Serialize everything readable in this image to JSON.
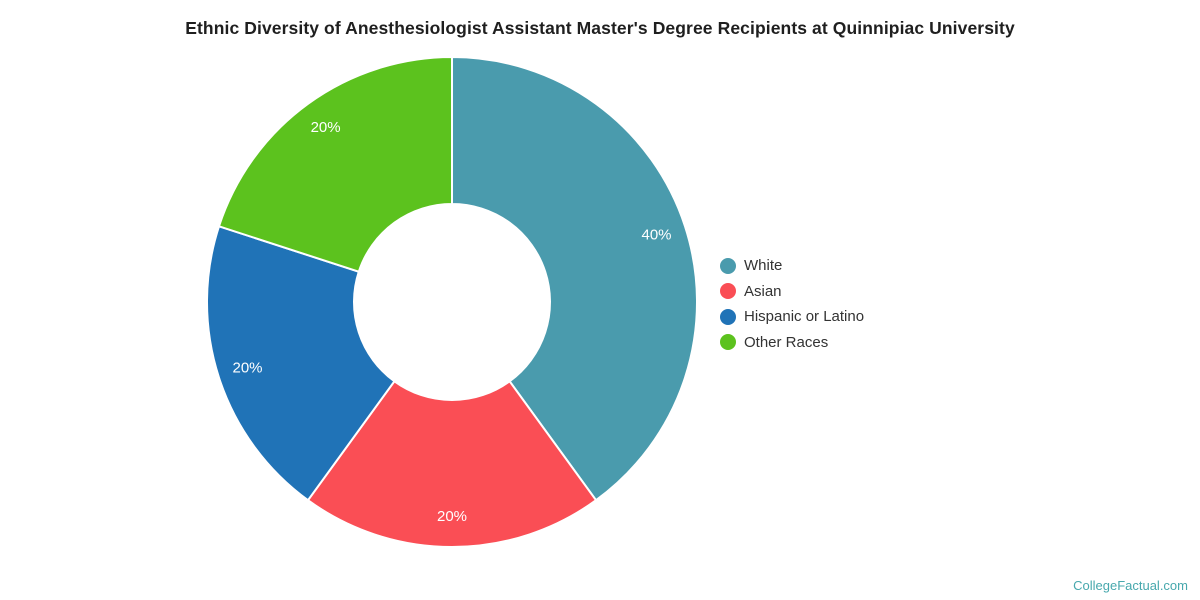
{
  "title": "Ethnic Diversity of Anesthesiologist Assistant Master's Degree Recipients at Quinnipiac University",
  "watermark": "CollegeFactual.com",
  "colors": {
    "title_text": "#1f1f1f",
    "legend_text": "#333333",
    "slice_label_text": "#ffffff",
    "watermark_text": "#47a8ad",
    "background": "#ffffff",
    "slice_border": "#ffffff"
  },
  "chart_data": {
    "type": "pie",
    "subtype": "donut",
    "title": "Ethnic Diversity of Anesthesiologist Assistant Master's Degree Recipients at Quinnipiac University",
    "start_angle_deg": 0,
    "direction": "clockwise",
    "legend_position": "right",
    "series": [
      {
        "name": "White",
        "value": 40,
        "label": "40%",
        "color": "#4a9bad"
      },
      {
        "name": "Asian",
        "value": 20,
        "label": "20%",
        "color": "#fa4e55"
      },
      {
        "name": "Hispanic or Latino",
        "value": 20,
        "label": "20%",
        "color": "#2073b7"
      },
      {
        "name": "Other Races",
        "value": 20,
        "label": "20%",
        "color": "#5cc21e"
      }
    ]
  }
}
